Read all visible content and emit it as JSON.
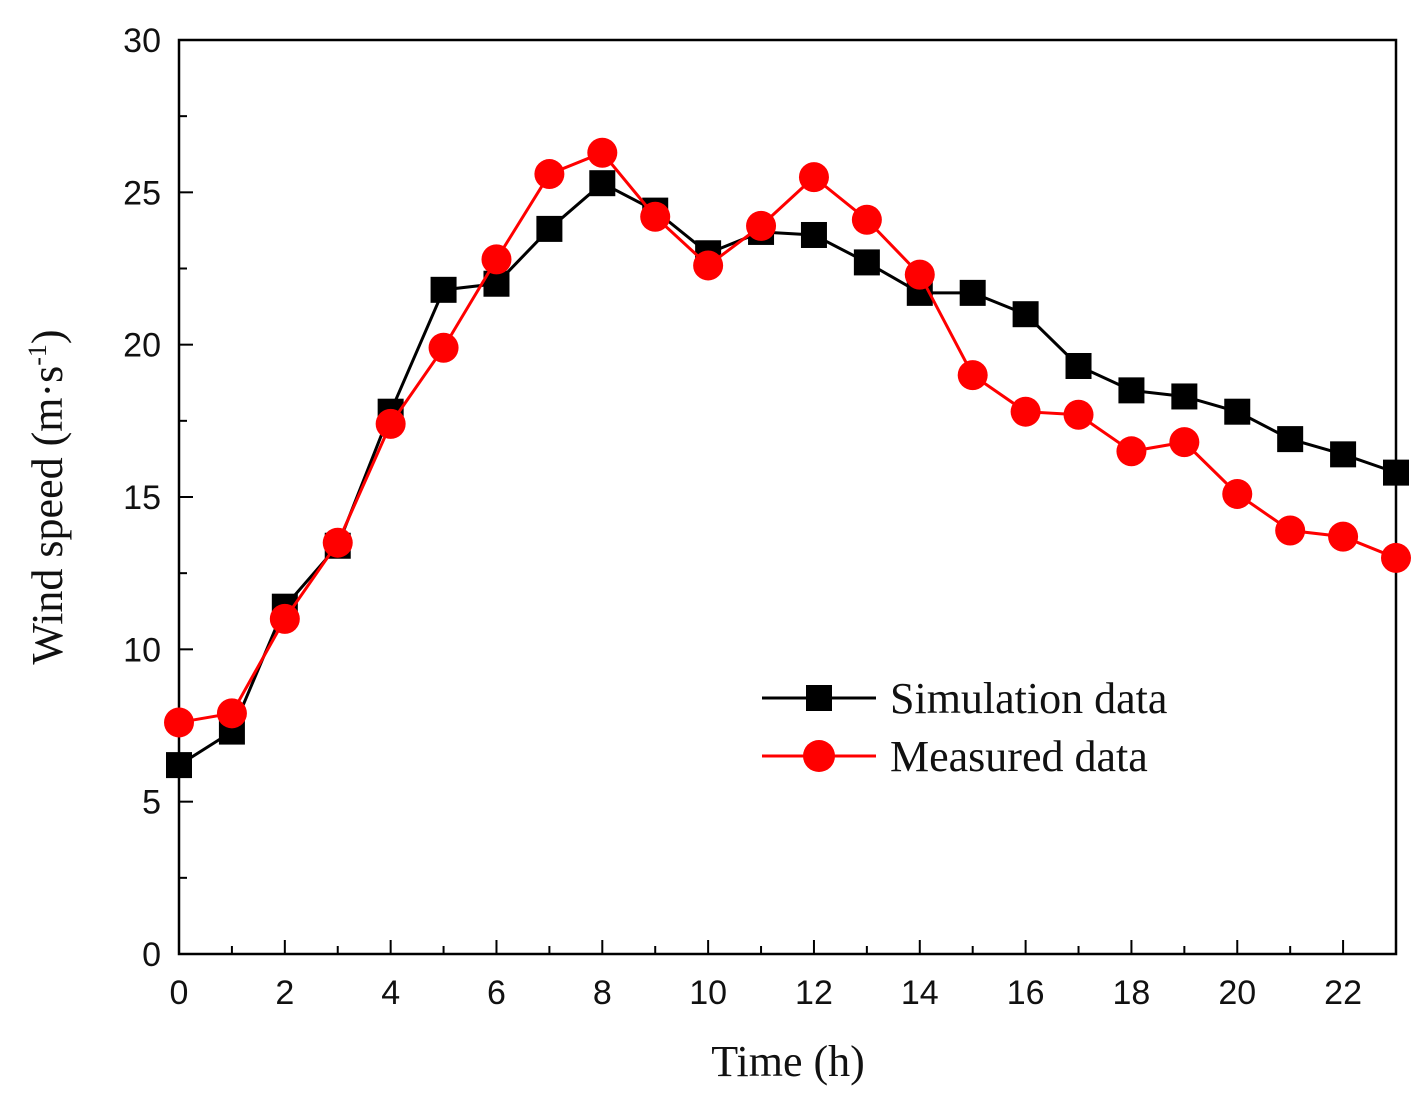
{
  "chart_data": {
    "type": "line",
    "title": "",
    "xlabel": "Time (h)",
    "ylabel": "Wind speed (m·s",
    "ylabel_sup": "-1",
    "ylabel_close": ")",
    "xlim": [
      0,
      23
    ],
    "ylim": [
      0,
      30
    ],
    "xticks": [
      0,
      2,
      4,
      6,
      8,
      10,
      12,
      14,
      16,
      18,
      20,
      22
    ],
    "yticks": [
      0,
      5,
      10,
      15,
      20,
      25,
      30
    ],
    "grid": false,
    "legend_position": "lower-right",
    "x": [
      0,
      1,
      2,
      3,
      4,
      5,
      6,
      7,
      8,
      9,
      10,
      11,
      12,
      13,
      14,
      15,
      16,
      17,
      18,
      19,
      20,
      21,
      22,
      23
    ],
    "series": [
      {
        "name": "Simulation data",
        "color": "#000000",
        "marker": "square",
        "values": [
          6.2,
          7.3,
          11.4,
          13.4,
          17.8,
          21.8,
          22.0,
          23.8,
          25.3,
          24.4,
          23.0,
          23.7,
          23.6,
          22.7,
          21.7,
          21.7,
          21.0,
          19.3,
          18.5,
          18.3,
          17.8,
          16.9,
          16.4,
          15.8
        ]
      },
      {
        "name": "Measured data",
        "color": "#ff0000",
        "marker": "circle",
        "values": [
          7.6,
          7.9,
          11.0,
          13.5,
          17.4,
          19.9,
          22.8,
          25.6,
          26.3,
          24.2,
          22.6,
          23.9,
          25.5,
          24.1,
          22.3,
          19.0,
          17.8,
          17.7,
          16.5,
          16.8,
          15.1,
          13.9,
          13.7,
          13.0
        ]
      }
    ]
  }
}
